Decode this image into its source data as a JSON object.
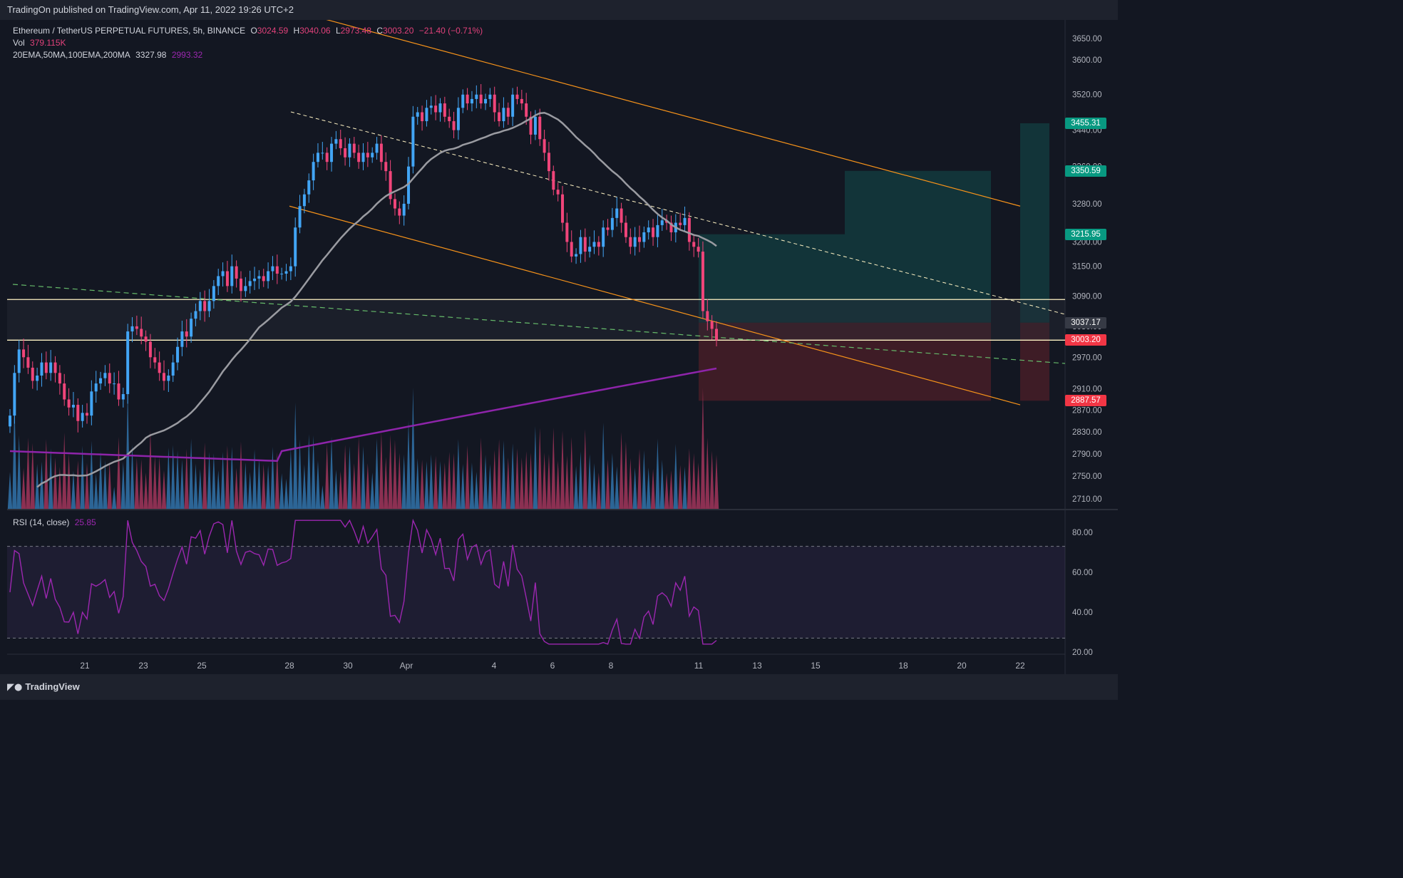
{
  "header": {
    "published": "TradingOn published on TradingView.com, Apr 11, 2022 19:26 UTC+2"
  },
  "legend": {
    "symbol": "Ethereum / TetherUS PERPETUAL FUTURES, 5h, BINANCE",
    "open_label": "O",
    "open": "3024.59",
    "high_label": "H",
    "high": "3040.06",
    "low_label": "L",
    "low": "2973.48",
    "close_label": "C",
    "close": "3003.20",
    "change": "−21.40 (−0.71%)",
    "vol_label": "Vol",
    "vol": "379.115K",
    "ma_label": "20EMA,50MA,100EMA,200MA",
    "ma1": "3327.98",
    "ma2": "2993.32",
    "rsi_label": "RSI (14, close)",
    "rsi": "25.85"
  },
  "footer": {
    "brand": "TradingView",
    "brand_icon": "tradingview-logo-icon"
  },
  "colors": {
    "background": "#131722",
    "up": "#42a5f5",
    "down": "#f0457a",
    "channel": "#f7931a",
    "ma_gray": "#9a9ba1",
    "ma_purple": "#8e24aa",
    "target_zone": "#134d4d",
    "stop_zone": "#5b1f2a"
  },
  "chart_data": [
    {
      "type": "candlestick",
      "title": "Ethereum / TetherUS PERPETUAL FUTURES, 5h, BINANCE",
      "x_ticks": [
        "21",
        "23",
        "25",
        "28",
        "30",
        "Apr",
        "4",
        "6",
        "8",
        "11",
        "13",
        "15",
        "18",
        "20",
        "22"
      ],
      "y_ticks": [
        3650,
        3600,
        3520,
        3440,
        3360,
        3280,
        3200,
        3150,
        3090,
        3030,
        2970,
        2910,
        2870,
        2830,
        2790,
        2750,
        2710
      ],
      "y_scale": "log",
      "y_range": [
        2690,
        3680
      ],
      "last_price": 3003.2,
      "price_labels": [
        {
          "value": "3455.31",
          "color": "#089981"
        },
        {
          "value": "3350.59",
          "color": "#089981"
        },
        {
          "value": "3215.95",
          "color": "#089981"
        },
        {
          "value": "3037.17",
          "color": "#363a45"
        },
        {
          "value": "3003.20",
          "color": "#f23645"
        },
        {
          "value": "2887.57",
          "color": "#f23645"
        }
      ],
      "horizontal_levels": [
        3083,
        3003
      ],
      "channel_lines": [
        {
          "from": [
            "Mar 29",
            3700
          ],
          "to": [
            "Apr 22",
            3275
          ]
        },
        {
          "from": [
            "Mar 28",
            3275
          ],
          "to": [
            "Apr 22",
            2880
          ]
        }
      ],
      "positions": [
        {
          "entry": 3037.17,
          "target": 3215.95,
          "stop": 2887.57,
          "from": "Apr 11",
          "to": "Apr 16"
        },
        {
          "entry": 3037.17,
          "target": 3350.59,
          "stop": 2887.57,
          "from": "Apr 16",
          "to": "Apr 21"
        },
        {
          "entry": 3037.17,
          "target": 3455.31,
          "stop": 2887.57,
          "from": "Apr 22",
          "to": "Apr 23"
        }
      ],
      "closes": [
        2860,
        2940,
        2985,
        2970,
        2950,
        2925,
        2935,
        2960,
        2940,
        2960,
        2940,
        2920,
        2890,
        2875,
        2880,
        2850,
        2865,
        2860,
        2905,
        2920,
        2930,
        2940,
        2920,
        2920,
        2890,
        2900,
        3020,
        3030,
        3025,
        3010,
        3000,
        2970,
        2960,
        2940,
        2925,
        2935,
        2960,
        2990,
        3020,
        3010,
        3045,
        3060,
        3080,
        3060,
        3080,
        3110,
        3130,
        3140,
        3110,
        3150,
        3125,
        3100,
        3110,
        3120,
        3125,
        3130,
        3120,
        3140,
        3150,
        3135,
        3135,
        3140,
        3150,
        3230,
        3275,
        3300,
        3330,
        3370,
        3390,
        3390,
        3370,
        3410,
        3420,
        3400,
        3380,
        3410,
        3390,
        3370,
        3390,
        3380,
        3390,
        3410,
        3370,
        3350,
        3290,
        3270,
        3255,
        3280,
        3360,
        3470,
        3480,
        3460,
        3490,
        3495,
        3480,
        3500,
        3470,
        3460,
        3440,
        3490,
        3520,
        3500,
        3510,
        3520,
        3500,
        3510,
        3520,
        3480,
        3460,
        3490,
        3470,
        3520,
        3510,
        3500,
        3470,
        3430,
        3470,
        3420,
        3390,
        3350,
        3310,
        3300,
        3240,
        3200,
        3170,
        3175,
        3210,
        3180,
        3190,
        3200,
        3190,
        3230,
        3225,
        3250,
        3270,
        3240,
        3210,
        3190,
        3210,
        3200,
        3220,
        3230,
        3210,
        3235,
        3245,
        3240,
        3220,
        3240,
        3235,
        3250,
        3200,
        3190,
        3180,
        3060,
        3040,
        3025,
        3003
      ],
      "rsi": {
        "upper": 73,
        "lower": 27,
        "y_ticks": [
          80,
          60,
          40,
          20
        ],
        "last": 25.85
      }
    }
  ]
}
